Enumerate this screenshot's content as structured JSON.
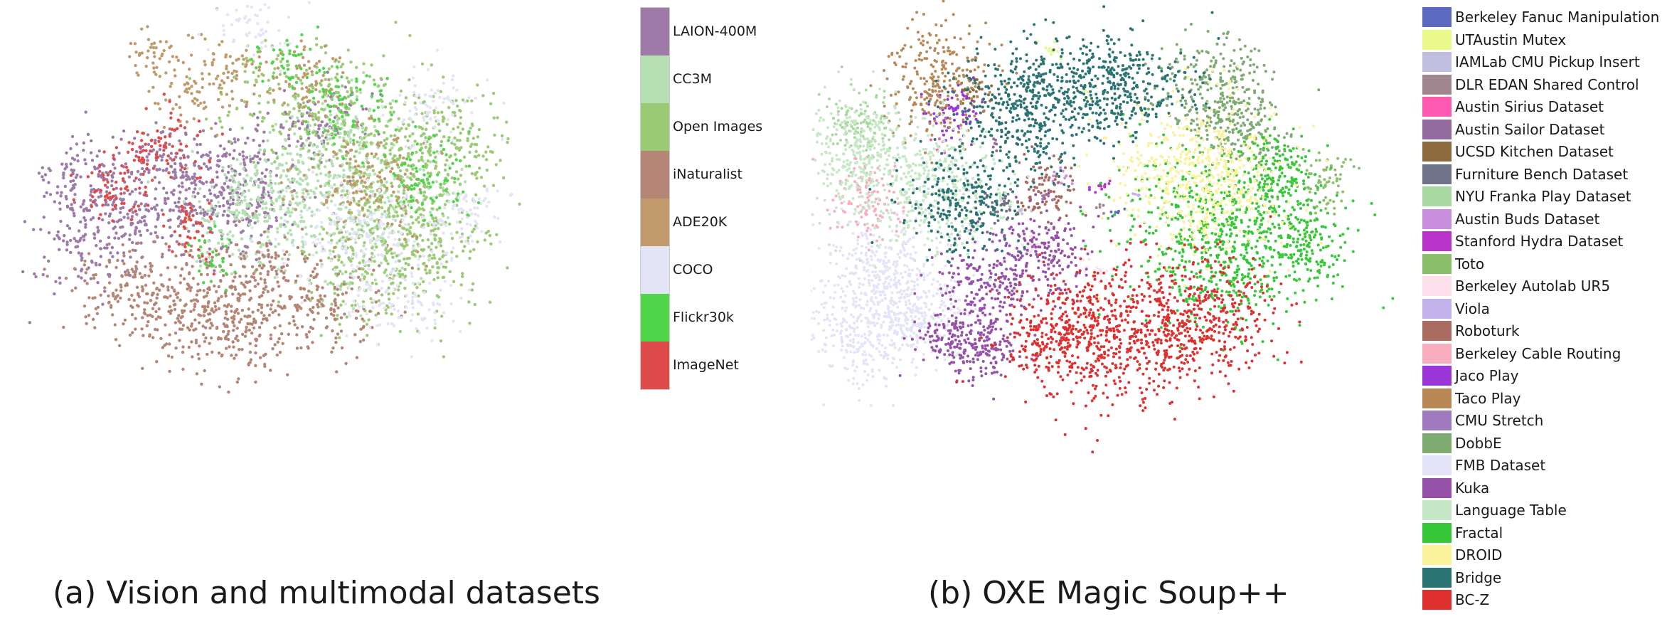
{
  "chart_data": [
    {
      "type": "scatter",
      "subtype": "t-SNE embedding with categorical colorbar",
      "title": "(a) Vision and multimodal datasets",
      "xlabel": "",
      "ylabel": "",
      "grid": false,
      "axes_visible": false,
      "legend_placement": "right (vertical colorbar)",
      "series": [
        {
          "name": "LAION-400M",
          "color": "#9e7aa8"
        },
        {
          "name": "CC3M",
          "color": "#b5e0b3"
        },
        {
          "name": "Open Images",
          "color": "#9bcb75"
        },
        {
          "name": "iNaturalist",
          "color": "#b58676"
        },
        {
          "name": "ADE20K",
          "color": "#c19a6b"
        },
        {
          "name": "COCO",
          "color": "#e3e5f7"
        },
        {
          "name": "Flickr30k",
          "color": "#4fd64a"
        },
        {
          "name": "ImageNet",
          "color": "#de4b4b"
        }
      ]
    },
    {
      "type": "scatter",
      "subtype": "t-SNE embedding with categorical legend",
      "title": "(b) OXE Magic Soup++",
      "xlabel": "",
      "ylabel": "",
      "grid": false,
      "axes_visible": false,
      "legend_placement": "right",
      "series": [
        {
          "name": "Berkeley Fanuc Manipulation",
          "color": "#5c6bc0"
        },
        {
          "name": "UTAustin Mutex",
          "color": "#e9f98a"
        },
        {
          "name": "IAMLab CMU Pickup Insert",
          "color": "#c0bedf"
        },
        {
          "name": "DLR EDAN Shared Control",
          "color": "#a0868f"
        },
        {
          "name": "Austin Sirius Dataset",
          "color": "#ff5ab0"
        },
        {
          "name": "Austin Sailor Dataset",
          "color": "#936a9e"
        },
        {
          "name": "UCSD Kitchen Dataset",
          "color": "#8c6a3e"
        },
        {
          "name": "Furniture Bench Dataset",
          "color": "#6e7389"
        },
        {
          "name": "NYU Franka Play Dataset",
          "color": "#a7d9a1"
        },
        {
          "name": "Austin Buds Dataset",
          "color": "#c78fdc"
        },
        {
          "name": "Stanford Hydra Dataset",
          "color": "#b834c9"
        },
        {
          "name": "Toto",
          "color": "#8bc06a"
        },
        {
          "name": "Berkeley Autolab UR5",
          "color": "#fde0ec"
        },
        {
          "name": "Viola",
          "color": "#c3b3ec"
        },
        {
          "name": "Roboturk",
          "color": "#a96a60"
        },
        {
          "name": "Berkeley Cable Routing",
          "color": "#f9aec0"
        },
        {
          "name": "Jaco Play",
          "color": "#9a36d6"
        },
        {
          "name": "Taco Play",
          "color": "#b88957"
        },
        {
          "name": "CMU Stretch",
          "color": "#a07abe"
        },
        {
          "name": "DobbE",
          "color": "#7dab72"
        },
        {
          "name": "FMB Dataset",
          "color": "#e3e4f8"
        },
        {
          "name": "Kuka",
          "color": "#9652a8"
        },
        {
          "name": "Language Table",
          "color": "#c7e8c7"
        },
        {
          "name": "Fractal",
          "color": "#36c837"
        },
        {
          "name": "DROID",
          "color": "#fbf29c"
        },
        {
          "name": "Bridge",
          "color": "#2c7474"
        },
        {
          "name": "BC-Z",
          "color": "#df3030"
        }
      ]
    }
  ]
}
